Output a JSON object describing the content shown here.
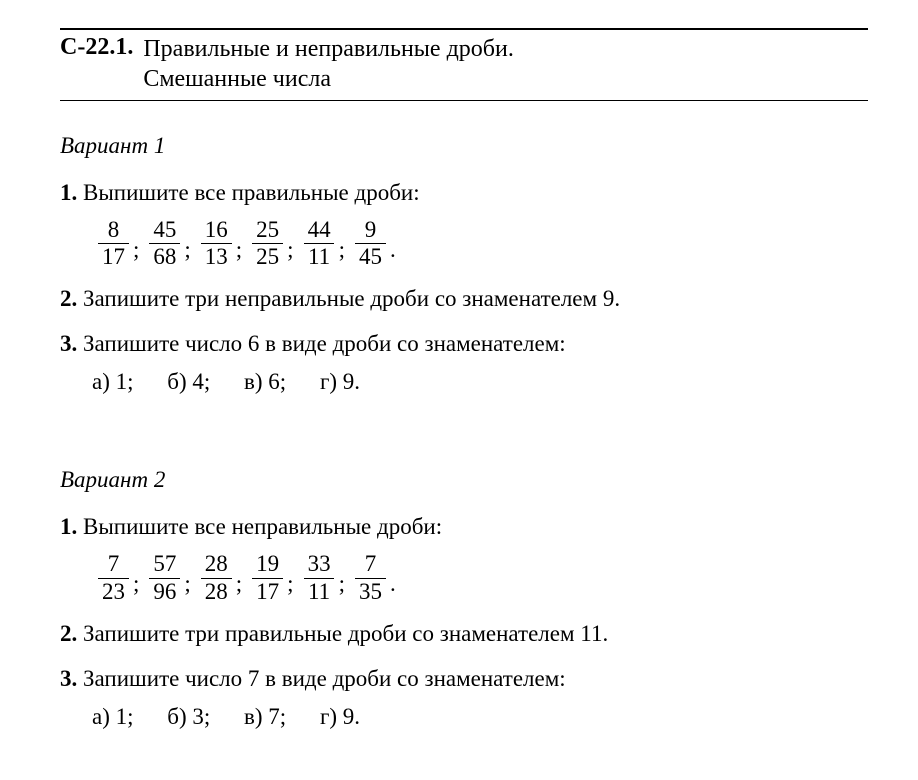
{
  "header": {
    "code": "С-22.1.",
    "title_line1": "Правильные и неправильные дроби.",
    "title_line2": "Смешанные числа"
  },
  "variant1": {
    "label": "Вариант 1",
    "task1": {
      "num": "1.",
      "text": "Выпишите все правильные дроби:",
      "fractions": [
        {
          "n": "8",
          "d": "17"
        },
        {
          "n": "45",
          "d": "68"
        },
        {
          "n": "16",
          "d": "13"
        },
        {
          "n": "25",
          "d": "25"
        },
        {
          "n": "44",
          "d": "11"
        },
        {
          "n": "9",
          "d": "45"
        }
      ],
      "sep": ";",
      "end": "."
    },
    "task2": {
      "num": "2.",
      "text": "Запишите три неправильные дроби со знаменателем 9."
    },
    "task3": {
      "num": "3.",
      "text": "Запишите число 6 в виде дроби со знаменателем:",
      "parts": {
        "a": "а) 1;",
        "b": "б) 4;",
        "c": "в) 6;",
        "d": "г) 9."
      }
    }
  },
  "variant2": {
    "label": "Вариант 2",
    "task1": {
      "num": "1.",
      "text": "Выпишите все неправильные дроби:",
      "fractions": [
        {
          "n": "7",
          "d": "23"
        },
        {
          "n": "57",
          "d": "96"
        },
        {
          "n": "28",
          "d": "28"
        },
        {
          "n": "19",
          "d": "17"
        },
        {
          "n": "33",
          "d": "11"
        },
        {
          "n": "7",
          "d": "35"
        }
      ],
      "sep": ";",
      "end": "."
    },
    "task2": {
      "num": "2.",
      "text": "Запишите три правильные дроби со знаменателем 11."
    },
    "task3": {
      "num": "3.",
      "text": "Запишите число 7 в виде дроби со знаменателем:",
      "parts": {
        "a": "а) 1;",
        "b": "б) 3;",
        "c": "в) 7;",
        "d": "г) 9."
      }
    }
  }
}
